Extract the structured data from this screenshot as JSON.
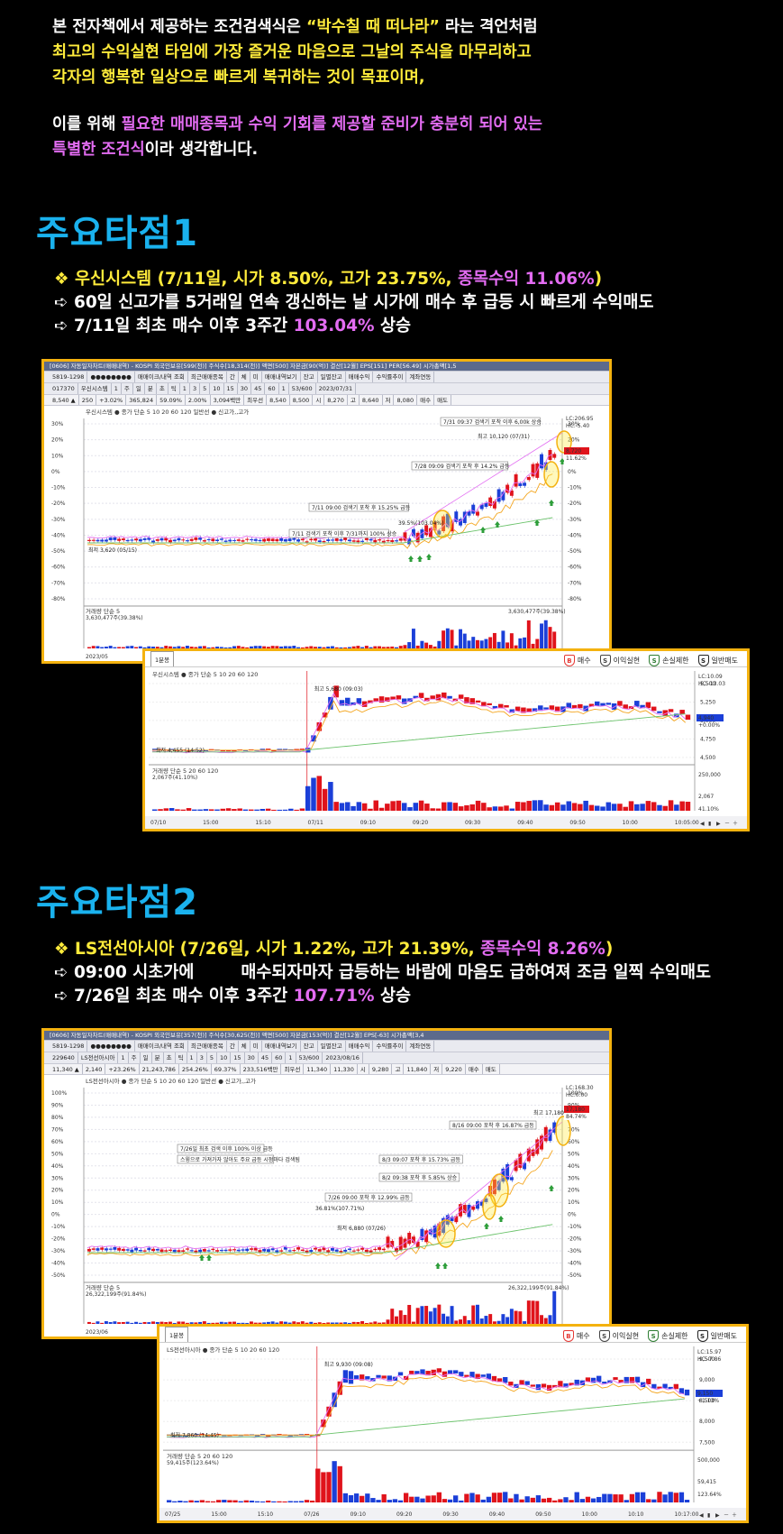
{
  "intro": {
    "line1_a": "본 전자책에서 제공하는 조건검색식은 ",
    "line1_b": "“박수칠 때 떠나라”",
    "line1_c": " 라는 격언처럼",
    "line2": "최고의 수익실현 타임에 가장 즐거운 마음으로 그날의 주식을 마무리하고",
    "line3": "각자의 행복한 일상으로 빠르게 복귀하는 것이 목표이며,",
    "line4_a": "이를 위해 ",
    "line4_b": "필요한 매매종목과 수익 기회를 제공할 준비가 충분히 되어 있는",
    "line5_a": "특별한 조건식",
    "line5_b": "이라 생각합니다."
  },
  "section1": {
    "title": "주요타점1",
    "b1_a": "❖ 우신시스템 (7/11일, 시가 8.50%, 고가 23.75%, ",
    "b1_b": "종목수익 11.06%",
    "b1_c": ")",
    "b2": "➪ 60일 신고가를 5거래일 연속 갱신하는 날 시가에 매수 후 급등 시 빠르게 수익매도",
    "b3_a": "➪ 7/11일 최초 매수 이후 3주간 ",
    "b3_b": "103.04%",
    "b3_c": " 상승",
    "daily": {
      "titlebar": "[0606] 자동일자차트(매매내역) - KOSPI 외국인보유[599(천)] 주식수[18,314(천)] 액면[500] 자본금[90(억)] 결산[12월] EPS[151] PER[56.49] 시가총액[1,5",
      "toolbar1": [
        "5819-1298",
        "●●●●●●●●",
        "매매이크/내역 조회",
        "최근매매종목",
        "간",
        "체",
        "미",
        "매매내역보기",
        "잔고",
        "일별잔고",
        "매매수익",
        "수익률추이",
        "계좌연동"
      ],
      "toolbar2": [
        "017370",
        "우신시스템",
        "1",
        "주",
        "일",
        "분",
        "초",
        "틱",
        "1",
        "3",
        "5",
        "10",
        "15",
        "30",
        "45",
        "60",
        "1",
        "53/600",
        "2023/07/31"
      ],
      "pricebar": [
        "8,540 ▲",
        "250",
        "+3.02%",
        "365,824",
        "59.09%",
        "2.00%",
        "3,094백만",
        "최우선",
        "8,540",
        "8,500",
        "시",
        "8,270",
        "고",
        "8,640",
        "저",
        "8,080",
        "매수",
        "매도"
      ],
      "legend": "우신시스템 ● 종가 단순 5  10  20  60  120  일반선  ● 신고가,,고가",
      "yaxis": [
        "30%",
        "20%",
        "10%",
        "0%",
        "-10%",
        "-20%",
        "-30%",
        "-40%",
        "-50%",
        "-60%",
        "-70%",
        "-80%"
      ],
      "annotations": [
        "7/31 09:37 검색기 포착 이후 6,00k 상승",
        "최고 10,120 (07/31)",
        "7/28 09:09 검색기 포착 후 14.2% 급등",
        "7/11 09:00 검색기 포착 후 15.25% 급등",
        "39.5%(103.04%)",
        "7/11 검색기 포착 이후 7/31까지 100% 상승",
        "최저 3,620 (05/15)"
      ],
      "right_badges": [
        "LC:206.95",
        "HC:-5.40",
        "8,720",
        "11.62%"
      ],
      "volume_legend": "거래량  단순 5",
      "volume_value": "3,630,477주(39.38%)",
      "volume_right": "3,630,477주(39.38%)",
      "xaxis": [
        "2023/05",
        "06",
        "07",
        "07/31"
      ]
    },
    "minute": {
      "tab": "1분봉",
      "legend": "우신시스템 ● 종가 단순 5  10  20  60  120",
      "high_label": "최고 5,680 (09:03)",
      "low_label": "최저 4,455 (14:52)",
      "yaxis": [
        "5,500",
        "5,250",
        "5,000",
        "4,750",
        "4,500"
      ],
      "right_badges": [
        "LC:10.09",
        "HC:-13.03",
        "4,940",
        "+0.00%"
      ],
      "volume_legend": "거래량  단순 5  20  60  120",
      "volume_value": "2,067주(41.10%)",
      "volume_right": [
        "250,000",
        "2,067",
        "41.10%"
      ],
      "xaxis": [
        "07/10",
        "15:00",
        "15:10",
        "07/11",
        "09:10",
        "09:20",
        "09:30",
        "09:40",
        "09:50",
        "10:00",
        "10:05:00"
      ]
    }
  },
  "section2": {
    "title": "주요타점2",
    "b1_a": "❖ LS전선아시아 (7/26일, 시가 1.22%, 고가 21.39%, ",
    "b1_b": "종목수익 8.26%",
    "b1_c": ")",
    "b2_a": "➪ 09:00 시초가에",
    "b2_b": "매수되자마자 급등하는 바람에 마음도 급하여져 조금 일찍 수익매도",
    "b3_a": "➪ 7/26일 최초 매수 이후 3주간 ",
    "b3_b": "107.71%",
    "b3_c": " 상승",
    "daily": {
      "titlebar": "[0606] 자동일자차트(매매내역) - KOSPI 외국인보유[357(천)] 주식수[30,625(천)] 액면[500] 자본금[153(억)] 결산[12월] EPS[-63] 시가총액[3,4",
      "toolbar1": [
        "5819-1298",
        "●●●●●●●●",
        "매매이크/내역 조회",
        "최근매매종목",
        "간",
        "체",
        "미",
        "매매내역보기",
        "잔고",
        "일별잔고",
        "매매수익",
        "수익률추이",
        "계좌연동"
      ],
      "toolbar2": [
        "229640",
        "LS전선아시아",
        "1",
        "주",
        "일",
        "분",
        "초",
        "틱",
        "1",
        "3",
        "5",
        "10",
        "15",
        "30",
        "45",
        "60",
        "1",
        "53/600",
        "2023/08/16"
      ],
      "pricebar": [
        "11,340 ▲",
        "2,140",
        "+23.26%",
        "21,243,786",
        "254.26%",
        "69.37%",
        "233,516백만",
        "최우선",
        "11,340",
        "11,330",
        "시",
        "9,280",
        "고",
        "11,840",
        "저",
        "9,220",
        "매수",
        "매도"
      ],
      "legend": "LS전선아시아 ● 종가 단순 5  10  20  60  120  일반선  ● 신고가,,고가",
      "yaxis": [
        "100%",
        "90%",
        "80%",
        "70%",
        "60%",
        "50%",
        "40%",
        "30%",
        "20%",
        "10%",
        "0%",
        "-10%",
        "-20%",
        "-30%",
        "-40%",
        "-50%"
      ],
      "annotations": [
        "최고 17,180 (08/16)",
        "8/16 09:00 포착 후 16.87% 급등",
        "8/3 09:07 포착 후 15.73% 급등",
        "8/2 09:38 포착 후 5.85% 상승",
        "7/26 09:00 포착 후 12.99% 급등",
        "36.81%(107.71%)",
        "최저 6,880 (07/26)",
        "7/26일 최초 검색 이후 100% 이상 급등",
        "스윙으로 가져가자 않아도 주요 급등 시점마다 검색됨"
      ],
      "right_badges": [
        "LC:168.30",
        "HC:0.00",
        "17,180",
        "84.74%"
      ],
      "volume_legend": "거래량  단순 5",
      "volume_value": "26,322,199주(91.84%)",
      "volume_right": "26,322,199주(91.84%)",
      "xaxis": [
        "2023/06",
        "07",
        "08",
        "08/16"
      ]
    },
    "minute": {
      "tab": "1분봉",
      "legend": "LS전선아시아 ● 종가 단순 5  10  20  60  120",
      "high_label": "최고 9,930 (09:08)",
      "low_label": "최저 7,860 (14:45)",
      "yaxis": [
        "9,500",
        "9,000",
        "8,500",
        "8,000",
        "7,500"
      ],
      "right_badges": [
        "LC:15.97",
        "HC:-7.86",
        "9,150",
        "+1.13%"
      ],
      "volume_legend": "거래량  단순 5  20  60  120",
      "volume_value": "59,415주(123.64%)",
      "volume_right": [
        "500,000",
        "59,415",
        "123.64%"
      ],
      "xaxis": [
        "07/25",
        "15:00",
        "15:10",
        "07/26",
        "09:10",
        "09:20",
        "09:30",
        "09:40",
        "09:50",
        "10:00",
        "10:10",
        "10:17:00"
      ]
    }
  },
  "legend_icons": [
    {
      "label": "매수",
      "icon": "buy-marker-icon",
      "color": "#e53935"
    },
    {
      "label": "이익실현",
      "icon": "profit-marker-icon",
      "color": "#444444"
    },
    {
      "label": "손실제한",
      "icon": "stoploss-marker-icon",
      "color": "#2e7d32"
    },
    {
      "label": "일반매도",
      "icon": "sell-marker-icon",
      "color": "#222222"
    }
  ],
  "colors": {
    "accent_title": "#1ab2ee",
    "yellow_text": "#ffeb3b",
    "magenta_text": "#e36cf2",
    "chart_border": "#f4b20f",
    "candle_up": "#e0131b",
    "candle_down": "#1b3fd8"
  }
}
